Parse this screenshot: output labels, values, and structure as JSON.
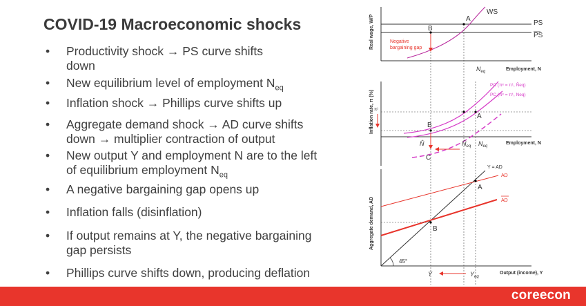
{
  "slide": {
    "title": "COVID-19 Macroeconomic shocks",
    "bullets": [
      {
        "a": "Productivity shock → PS curve shifts",
        "b": "down"
      },
      {
        "a": "New equilibrium level of employment N",
        "sub": "eq"
      },
      {
        "a": "Inflation shock → Phillips curve shifts up"
      },
      {
        "a": "Aggregate demand shock → AD curve shifts",
        "b": "down → multiplier contraction of output"
      },
      {
        "a": "New output Y and employment N are to the left",
        "b": "of equilibrium employment N",
        "sub": "eq"
      },
      {
        "a": "A negative bargaining gap opens up"
      },
      {
        "a": "Inflation falls (disinflation)"
      },
      {
        "a": "If output remains at Y, the negative bargaining",
        "b": "gap persists"
      },
      {
        "a": "Phillips curve shifts down, producing deflation"
      }
    ]
  },
  "chart_data": [
    {
      "type": "line",
      "title": "",
      "ylabel": "Real wage, W/P",
      "xlabel": "Employment, N",
      "series": [
        {
          "name": "WS"
        },
        {
          "name": "PS"
        },
        {
          "name": "PS (new)"
        }
      ],
      "annotations": [
        "A",
        "B",
        "Negative",
        "bargaining gap",
        "N",
        "eq"
      ]
    },
    {
      "type": "line",
      "title": "",
      "ylabel": "Inflation rate, π (%)",
      "xlabel": "Employment, N",
      "series": [
        {
          "name": "PC (πᵉ = π¹, N̂eq)"
        },
        {
          "name": "PC (πᵉ = π¹, Neq)"
        }
      ],
      "annotations": [
        "π¹",
        "A",
        "B",
        "C",
        "N̂",
        "N̂eq",
        "Neq"
      ]
    },
    {
      "type": "line",
      "title": "",
      "ylabel": "Aggregate demand, AD",
      "xlabel": "Output (income), Y",
      "series": [
        {
          "name": "Y = AD"
        },
        {
          "name": "AD"
        },
        {
          "name": "AD (new)"
        }
      ],
      "annotations": [
        "A",
        "B",
        "45°",
        "Ŷ",
        "Yeq"
      ]
    }
  ],
  "labels": {
    "p1": {
      "ws": "WS",
      "ps": "PS",
      "ps2": "PS",
      "a": "A",
      "b": "B",
      "neg1": "Negative",
      "neg2": "bargaining gap",
      "n": "N",
      "eq": "eq",
      "xlabel": "Employment, N",
      "ylabel": "Real wage, W/P"
    },
    "p2": {
      "pc1": "PC (πᵉ = π¹, N̂eq)",
      "pc2": "PC (πᵉ = π¹, Neq)",
      "pi": "π¹",
      "a": "A",
      "b": "B",
      "c": "C",
      "nhat": "N̂",
      "nhateq": "N̂",
      "eq": "eq",
      "n": "N",
      "xlabel": "Employment, N",
      "ylabel": "Inflation rate, π (%)"
    },
    "p3": {
      "yad": "Y = AD",
      "ad": "AD",
      "ad2": "AD",
      "a": "A",
      "b": "B",
      "deg": "45°",
      "yhat": "Ŷ",
      "y": "Y",
      "eq": "eq",
      "xlabel": "Output (income), Y",
      "ylabel": "Aggregate demand, AD"
    }
  },
  "colors": {
    "accent": "#e8352c",
    "pink": "#d63ec8",
    "red": "#e8352c"
  },
  "footer": {
    "logo": "coreecon"
  }
}
